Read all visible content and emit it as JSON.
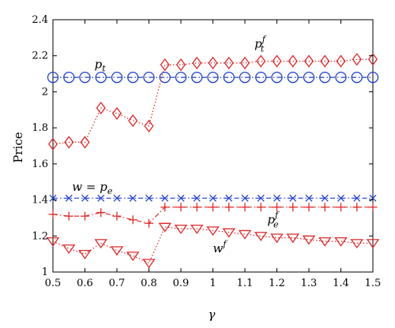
{
  "chart_data": {
    "type": "line",
    "xlabel": "γ",
    "ylabel": "Price",
    "xlim": [
      0.5,
      1.5
    ],
    "ylim": [
      1.0,
      2.4
    ],
    "xticks": [
      "0.5",
      "0.6",
      "0.7",
      "0.8",
      "0.9",
      "1",
      "1.1",
      "1.2",
      "1.3",
      "1.4",
      "1.5"
    ],
    "yticks": [
      "1",
      "1.2",
      "1.4",
      "1.6",
      "1.8",
      "2",
      "2.2",
      "2.4"
    ],
    "grid": false,
    "x": [
      0.5,
      0.55,
      0.6,
      0.65,
      0.7,
      0.75,
      0.8,
      0.85,
      0.9,
      0.95,
      1.0,
      1.05,
      1.1,
      1.15,
      1.2,
      1.25,
      1.3,
      1.35,
      1.4,
      1.45,
      1.5
    ],
    "series": [
      {
        "key": "pt",
        "color": "#1f3fd0",
        "marker": "circle",
        "line": "dashdot",
        "values": [
          2.08,
          2.08,
          2.08,
          2.08,
          2.08,
          2.08,
          2.08,
          2.08,
          2.08,
          2.08,
          2.08,
          2.08,
          2.08,
          2.08,
          2.08,
          2.08,
          2.08,
          2.08,
          2.08,
          2.08,
          2.08
        ]
      },
      {
        "key": "ptf",
        "color": "#e0282a",
        "marker": "diamond",
        "line": "dotted",
        "values": [
          1.71,
          1.72,
          1.72,
          1.91,
          1.88,
          1.84,
          1.81,
          2.15,
          2.15,
          2.16,
          2.16,
          2.16,
          2.16,
          2.17,
          2.17,
          2.17,
          2.17,
          2.17,
          2.17,
          2.18,
          2.18
        ]
      },
      {
        "key": "w_pe",
        "color": "#1f3fd0",
        "marker": "x",
        "line": "dashdot",
        "values": [
          1.41,
          1.41,
          1.41,
          1.41,
          1.41,
          1.41,
          1.41,
          1.41,
          1.41,
          1.41,
          1.41,
          1.41,
          1.41,
          1.41,
          1.41,
          1.41,
          1.41,
          1.41,
          1.41,
          1.41,
          1.41
        ]
      },
      {
        "key": "pef",
        "color": "#e0282a",
        "marker": "plus",
        "line": "dashdot",
        "values": [
          1.32,
          1.31,
          1.31,
          1.33,
          1.31,
          1.29,
          1.27,
          1.36,
          1.36,
          1.36,
          1.36,
          1.36,
          1.36,
          1.36,
          1.36,
          1.36,
          1.36,
          1.36,
          1.36,
          1.36,
          1.36
        ]
      },
      {
        "key": "wf",
        "color": "#e0282a",
        "marker": "triangle-down",
        "line": "dotted",
        "values": [
          1.17,
          1.13,
          1.1,
          1.16,
          1.12,
          1.09,
          1.05,
          1.25,
          1.24,
          1.24,
          1.23,
          1.22,
          1.21,
          1.2,
          1.19,
          1.19,
          1.18,
          1.17,
          1.17,
          1.16,
          1.16
        ]
      }
    ],
    "annotations": [
      {
        "key": "pt",
        "base": "p",
        "sub": "t",
        "sup": "",
        "x": 0.63,
        "y": 2.13
      },
      {
        "key": "ptf",
        "base": "p",
        "sub": "t",
        "sup": "f",
        "x": 1.13,
        "y": 2.245
      },
      {
        "key": "w_pe",
        "base": "w = p",
        "sub": "e",
        "sup": "",
        "x": 0.56,
        "y": 1.45
      },
      {
        "key": "pef",
        "base": "p",
        "sub": "e",
        "sup": "f",
        "x": 1.17,
        "y": 1.27
      },
      {
        "key": "wf",
        "base": "w",
        "sub": "",
        "sup": "f",
        "x": 1.0,
        "y": 1.11
      }
    ]
  }
}
